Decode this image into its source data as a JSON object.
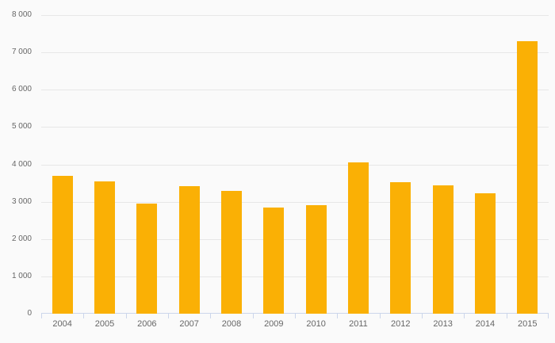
{
  "chart_data": {
    "type": "bar",
    "categories": [
      "2004",
      "2005",
      "2006",
      "2007",
      "2008",
      "2009",
      "2010",
      "2011",
      "2012",
      "2013",
      "2014",
      "2015"
    ],
    "values": [
      3700,
      3550,
      2940,
      3420,
      3300,
      2840,
      2910,
      4050,
      3530,
      3440,
      3230,
      7300
    ],
    "title": "",
    "xlabel": "",
    "ylabel": "",
    "ylim": [
      0,
      8000
    ],
    "ytick_step": 1000,
    "ytick_labels": [
      "0",
      "1 000",
      "2 000",
      "3 000",
      "4 000",
      "5 000",
      "6 000",
      "7 000",
      "8 000"
    ],
    "grid": true,
    "legend": false
  },
  "colors": {
    "bar": "#fab005",
    "axis_line": "#ccd6eb",
    "gridline": "#e7e7e7",
    "label_text": "#666666",
    "background": "#fafafa"
  }
}
